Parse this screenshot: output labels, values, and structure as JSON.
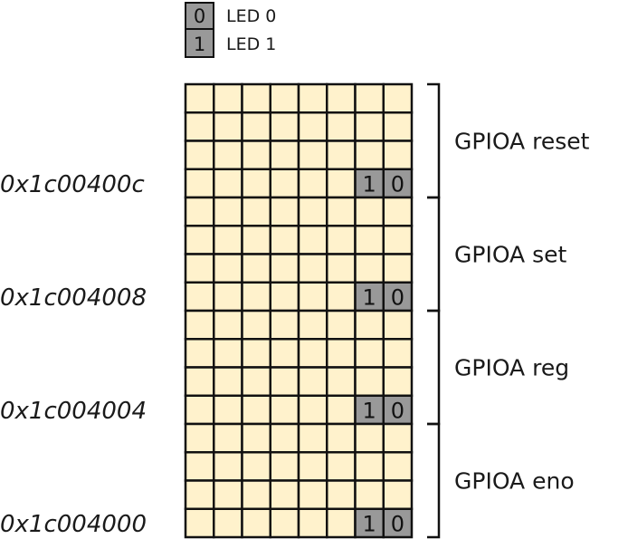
{
  "legend": [
    {
      "digit": "0",
      "label": "LED 0"
    },
    {
      "digit": "1",
      "label": "LED 1"
    }
  ],
  "registers": [
    {
      "name": "GPIOA reset",
      "address": "0x1c00400c"
    },
    {
      "name": "GPIOA set",
      "address": "0x1c004008"
    },
    {
      "name": "GPIOA reg",
      "address": "0x1c004004"
    },
    {
      "name": "GPIOA eno",
      "address": "0x1c004000"
    }
  ],
  "highlighted_bits": [
    "1",
    "0"
  ],
  "colors": {
    "cell_fill": "#fff2cc",
    "highlight_fill": "#999999",
    "stroke": "#111111"
  }
}
